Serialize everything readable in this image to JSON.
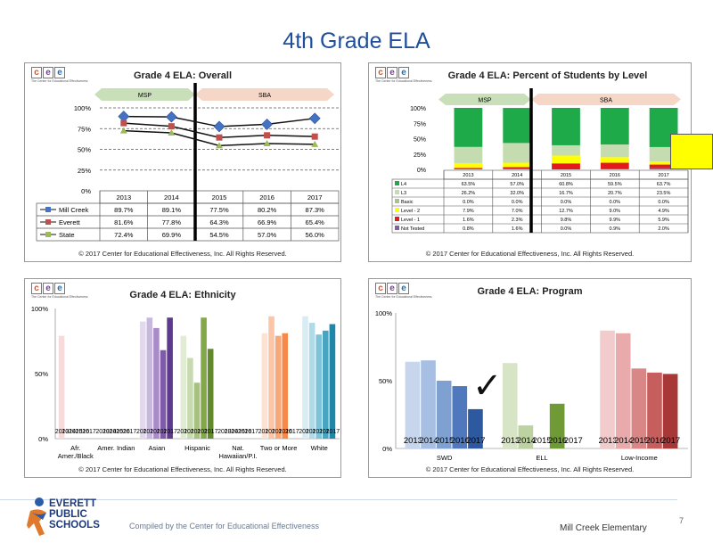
{
  "title": "4th Grade ELA",
  "copyright": "© 2017 Center for Educational Effectiveness, Inc. All Rights Reserved.",
  "logo": {
    "letters": [
      "c",
      "e",
      "e"
    ],
    "tagline": "The Center for Educational Effectiveness"
  },
  "footer": {
    "district": [
      "EVERETT",
      "PUBLIC",
      "SCHOOLS"
    ],
    "compiled": "Compiled by the Center for Educational Effectiveness",
    "school": "Mill Creek Elementary",
    "page": "7"
  },
  "colors": {
    "title": "#1f4e9c",
    "msp_arrow": "#c8dfb9",
    "sba_arrow": "#f6d6c6"
  },
  "chart_data": [
    {
      "type": "line",
      "title": "Grade 4 ELA: Overall",
      "categories": [
        "2013",
        "2014",
        "2015",
        "2016",
        "2017"
      ],
      "ylim": [
        0,
        100
      ],
      "yticks": [
        "0%",
        "25%",
        "50%",
        "75%",
        "100%"
      ],
      "test_labels": [
        "MSP",
        "SBA"
      ],
      "series": [
        {
          "name": "Mill Creek",
          "values": [
            89.7,
            89.1,
            77.5,
            80.2,
            87.3
          ],
          "labels": [
            "89.7%",
            "89.1%",
            "77.5%",
            "80.2%",
            "87.3%"
          ],
          "color": "#4472c4",
          "marker": "diamond"
        },
        {
          "name": "Everett",
          "values": [
            81.6,
            77.8,
            64.3,
            66.9,
            65.4
          ],
          "labels": [
            "81.6%",
            "77.8%",
            "64.3%",
            "66.9%",
            "65.4%"
          ],
          "color": "#c0504d",
          "marker": "square"
        },
        {
          "name": "State",
          "values": [
            72.4,
            69.9,
            54.5,
            57.0,
            56.0
          ],
          "labels": [
            "72.4%",
            "69.9%",
            "54.5%",
            "57.0%",
            "56.0%"
          ],
          "color": "#9bbb59",
          "marker": "triangle"
        }
      ]
    },
    {
      "type": "bar",
      "stacked": true,
      "title": "Grade 4 ELA: Percent of Students by Level",
      "categories": [
        "2013",
        "2014",
        "2015",
        "2016",
        "2017"
      ],
      "ylim": [
        0,
        100
      ],
      "yticks": [
        "0%",
        "25%",
        "50%",
        "75%",
        "100%"
      ],
      "test_labels": [
        "MSP",
        "SBA"
      ],
      "series": [
        {
          "name": "Not Tested",
          "color": "#7f5fa6",
          "values": [
            0.8,
            1.6,
            0.0,
            0.9,
            2.0
          ],
          "labels": [
            "0.8%",
            "1.6%",
            "0.0%",
            "0.9%",
            "2.0%"
          ]
        },
        {
          "name": "Level - 1",
          "color": "#e31a1c",
          "values": [
            1.6,
            2.3,
            9.8,
            9.9,
            5.9
          ],
          "labels": [
            "1.6%",
            "2.3%",
            "9.8%",
            "9.9%",
            "5.9%"
          ]
        },
        {
          "name": "Level - 2",
          "color": "#ffff00",
          "values": [
            7.9,
            7.0,
            12.7,
            9.0,
            4.9
          ],
          "labels": [
            "7.9%",
            "7.0%",
            "12.7%",
            "9.0%",
            "4.9%"
          ]
        },
        {
          "name": "Basic",
          "color": "#a9c18b",
          "values": [
            0.0,
            0.0,
            0.0,
            0.0,
            0.0
          ],
          "labels": [
            "0.0%",
            "0.0%",
            "0.0%",
            "0.0%",
            "0.0%"
          ]
        },
        {
          "name": "L3",
          "color": "#c4dcb0",
          "values": [
            26.2,
            32.0,
            16.7,
            20.7,
            23.5
          ],
          "labels": [
            "26.2%",
            "32.0%",
            "16.7%",
            "20.7%",
            "23.5%"
          ]
        },
        {
          "name": "L4",
          "color": "#1faa4a",
          "values": [
            63.5,
            57.0,
            60.8,
            59.5,
            63.7
          ],
          "labels": [
            "63.5%",
            "57.0%",
            "60.8%",
            "59.5%",
            "63.7%"
          ]
        }
      ]
    },
    {
      "type": "bar",
      "title": "Grade 4 ELA: Ethnicity",
      "categories": [
        "Afr. Amer./Black",
        "Amer. Indian",
        "Asian",
        "Hispanic",
        "Nat. Hawaiian/P.I.",
        "Two or More",
        "White"
      ],
      "category_lines": [
        [
          "Afr.",
          "Amer./Black"
        ],
        [
          "Amer. Indian"
        ],
        [
          "Asian"
        ],
        [
          "Hispanic"
        ],
        [
          "Nat.",
          "Hawaiian/P.I."
        ],
        [
          "Two or More"
        ],
        [
          "White"
        ]
      ],
      "years": [
        "2013",
        "2014",
        "2015",
        "2016",
        "2017"
      ],
      "ylim": [
        0,
        100
      ],
      "yticks": [
        "0%",
        "50%",
        "100%"
      ],
      "values": [
        [
          79,
          null,
          null,
          null,
          null
        ],
        [
          null,
          null,
          null,
          null,
          null
        ],
        [
          90,
          93,
          85,
          68,
          93
        ],
        [
          79,
          62,
          43,
          93,
          69
        ],
        [
          null,
          null,
          null,
          null,
          null
        ],
        [
          81,
          94,
          79,
          81,
          null
        ],
        [
          94,
          89,
          80,
          83,
          88
        ]
      ],
      "colors": [
        [
          "#f8dada"
        ],
        [
          "#fff"
        ],
        [
          "#e3d9ee",
          "#c9b8de",
          "#a88bc7",
          "#7e5aa8",
          "#5e3a8e"
        ],
        [
          "#e2ecd5",
          "#c8dbb0",
          "#a6c27e",
          "#82a84a",
          "#628a2c"
        ],
        [
          "#fff"
        ],
        [
          "#fde2d2",
          "#fbc6a8",
          "#f8a878",
          "#f58a4a",
          "#e86d1f"
        ],
        [
          "#d8ecf4",
          "#b0dae8",
          "#7ec3d8",
          "#46a6c2",
          "#1f88a8"
        ]
      ]
    },
    {
      "type": "bar",
      "title": "Grade 4 ELA: Program",
      "categories": [
        "SWD",
        "ELL",
        "Low-Income"
      ],
      "years": [
        "2013",
        "2014",
        "2015",
        "2016",
        "2017"
      ],
      "ylim": [
        0,
        100
      ],
      "yticks": [
        "0%",
        "50%",
        "100%"
      ],
      "values": [
        [
          64,
          65,
          50,
          46,
          29
        ],
        [
          63,
          17,
          null,
          33,
          null
        ],
        [
          87,
          85,
          59,
          56,
          55
        ]
      ],
      "colors": [
        [
          "#c7d6ec",
          "#a6bfe2",
          "#7fa1d2",
          "#4f78bd",
          "#2d59a0"
        ],
        [
          "#d7e4c5",
          "#bcd2a0",
          null,
          "#6f9a36",
          null
        ],
        [
          "#f2cccc",
          "#e8aaaa",
          "#d98686",
          "#c65e5e",
          "#a83838"
        ]
      ]
    }
  ]
}
